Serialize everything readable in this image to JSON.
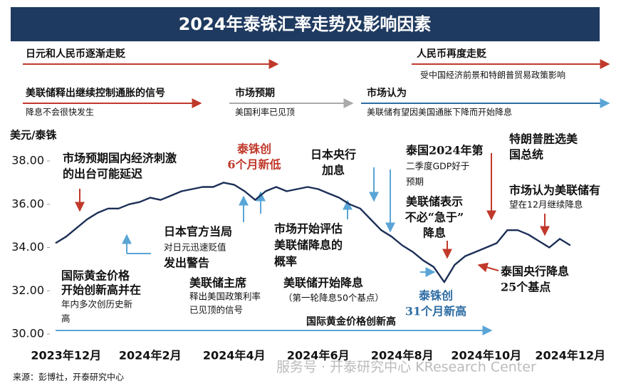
{
  "chart_data": {
    "type": "line",
    "title": "2024年泰铢汇率走势及影响因素",
    "y_label": "美元/泰铢",
    "categories": [
      null,
      "2023年12月",
      null,
      null,
      null,
      null,
      null,
      null,
      null,
      "2024年2月",
      null,
      null,
      null,
      null,
      null,
      null,
      null,
      "2024年4月",
      null,
      null,
      null,
      null,
      null,
      null,
      null,
      "2024年6月",
      null,
      null,
      null,
      null,
      null,
      null,
      null,
      "2024年8月",
      null,
      null,
      null,
      null,
      null,
      null,
      null,
      "2024年10月",
      null,
      null,
      null,
      null,
      null,
      null,
      null,
      "2024年12月"
    ],
    "series": [
      {
        "name": "美元/泰铢",
        "color": "#1c2f57",
        "values": [
          34.2,
          34.5,
          34.9,
          35.3,
          35.6,
          35.8,
          35.8,
          36.0,
          36.1,
          36.3,
          36.2,
          36.4,
          36.6,
          36.7,
          36.8,
          36.8,
          37.0,
          36.9,
          36.6,
          36.2,
          36.6,
          36.8,
          36.6,
          36.7,
          36.8,
          36.7,
          36.5,
          36.3,
          36.0,
          35.8,
          35.3,
          34.8,
          34.5,
          34.1,
          33.8,
          33.4,
          33.1,
          32.4,
          33.2,
          33.6,
          33.8,
          34.0,
          34.2,
          34.8,
          34.8,
          34.6,
          34.3,
          34.0,
          34.4,
          34.1
        ]
      }
    ],
    "ylim": [
      30,
      39
    ],
    "yticks": [
      {
        "value": 30,
        "label": "30.00"
      },
      {
        "value": 32,
        "label": "32.00"
      },
      {
        "value": 34,
        "label": "34.00"
      },
      {
        "value": 36,
        "label": "36.00"
      },
      {
        "value": 38,
        "label": "38.00"
      }
    ],
    "annotations": [
      [
        "日元和人民币逐渐走贬"
      ],
      [
        "人民币再度走贬"
      ],
      [
        "受中国经济前景和特朗普贸易政策影响"
      ],
      [
        "美联储释出继续控制通胀的信号"
      ],
      [
        "降息不会很快发生"
      ],
      [
        "市场预期"
      ],
      [
        "美国利率已见顶"
      ],
      [
        "市场认为"
      ],
      [
        "美联储有望因美国通胀下降而开始降息"
      ],
      [
        "市场预期国内经济刺激",
        "的出台可能延迟"
      ],
      [
        "泰铢创",
        "6个月新低"
      ],
      [
        "日本央行",
        "加息"
      ],
      [
        "泰国2024年第",
        "二季度GDP好于",
        "预期"
      ],
      [
        "特朗普胜选美",
        "国总统"
      ],
      [
        "市场认为美联储有",
        "望在12月继续降息"
      ],
      [
        "美联储表示",
        "不必“急于”",
        "降息"
      ],
      [
        "日本官方当局",
        "对日元迅速贬值",
        "发出警告"
      ],
      [
        "市场开始评估",
        "美联储降息的",
        "概率"
      ],
      [
        "国际黄金价格",
        "开始创新高并在",
        "年内多次创历史新",
        "高"
      ],
      [
        "美联储主席",
        "释出美国政策利率",
        "已见顶的信号"
      ],
      [
        "美联储开始降息",
        "（第一轮降息50个基点）"
      ],
      [
        "泰铢创",
        "31个月新高"
      ],
      [
        "泰国央行降息",
        "25个基点"
      ],
      [
        "国际黄金价格创新高"
      ]
    ],
    "source": "来源：彭博社，开泰研究中心",
    "watermark": "服务号 · 开泰研究中心 KResearch Center"
  }
}
